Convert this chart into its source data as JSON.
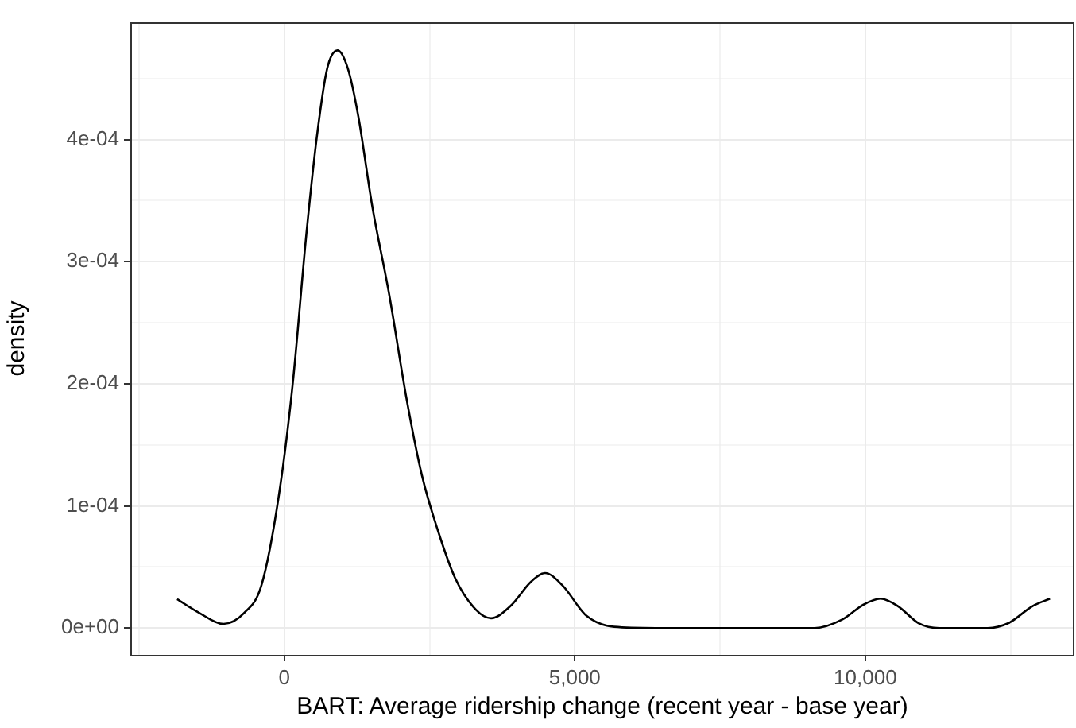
{
  "chart_data": {
    "type": "line",
    "xlabel": "BART: Average ridership change (recent year - base year)",
    "ylabel": "density",
    "xlim": [
      -2650,
      13600
    ],
    "ylim": [
      -2.2e-05,
      0.000496
    ],
    "xticks": [
      {
        "value": -2500,
        "label": null
      },
      {
        "value": 0,
        "label": "0"
      },
      {
        "value": 2500,
        "label": null
      },
      {
        "value": 5000,
        "label": "5,000"
      },
      {
        "value": 7500,
        "label": null
      },
      {
        "value": 10000,
        "label": "10,000"
      },
      {
        "value": 12500,
        "label": null
      }
    ],
    "yticks": [
      {
        "value": 0,
        "label": "0e+00"
      },
      {
        "value": 5e-05,
        "label": null
      },
      {
        "value": 0.0001,
        "label": "1e-04"
      },
      {
        "value": 0.00015,
        "label": null
      },
      {
        "value": 0.0002,
        "label": "2e-04"
      },
      {
        "value": 0.00025,
        "label": null
      },
      {
        "value": 0.0003,
        "label": "3e-04"
      },
      {
        "value": 0.00035,
        "label": null
      },
      {
        "value": 0.0004,
        "label": "4e-04"
      },
      {
        "value": 0.00045,
        "label": null
      }
    ],
    "grid": true,
    "legend": false,
    "marker": "none",
    "line_style": "solid",
    "series": [
      {
        "color": "#000000",
        "x": [
          -1845,
          -1464,
          -1048,
          -690,
          -393,
          -95,
          143,
          381,
          560,
          738,
          917,
          1095,
          1274,
          1512,
          1810,
          2107,
          2369,
          2643,
          2940,
          3298,
          3560,
          3893,
          4250,
          4488,
          4786,
          5202,
          5679,
          6393,
          9131,
          9607,
          9964,
          10262,
          10560,
          10917,
          11274,
          12107,
          12464,
          12881,
          13179
        ],
        "values": [
          2.37e-05,
          1.24e-05,
          3.4e-06,
          1.24e-05,
          3.5e-05,
          0.000108,
          0.000199,
          0.000323,
          0.000402,
          0.000458,
          0.000473,
          0.000458,
          0.000419,
          0.000346,
          0.000272,
          0.000187,
          0.000125,
          8e-05,
          4.1e-05,
          1.5e-05,
          8e-06,
          1.8e-05,
          3.8e-05,
          4.5e-05,
          3.5e-05,
          1e-05,
          1e-06,
          0,
          0,
          7e-06,
          1.9e-05,
          2.4e-05,
          1.8e-05,
          4e-06,
          0,
          0,
          4e-06,
          1.8e-05,
          2.4e-05
        ]
      }
    ]
  }
}
